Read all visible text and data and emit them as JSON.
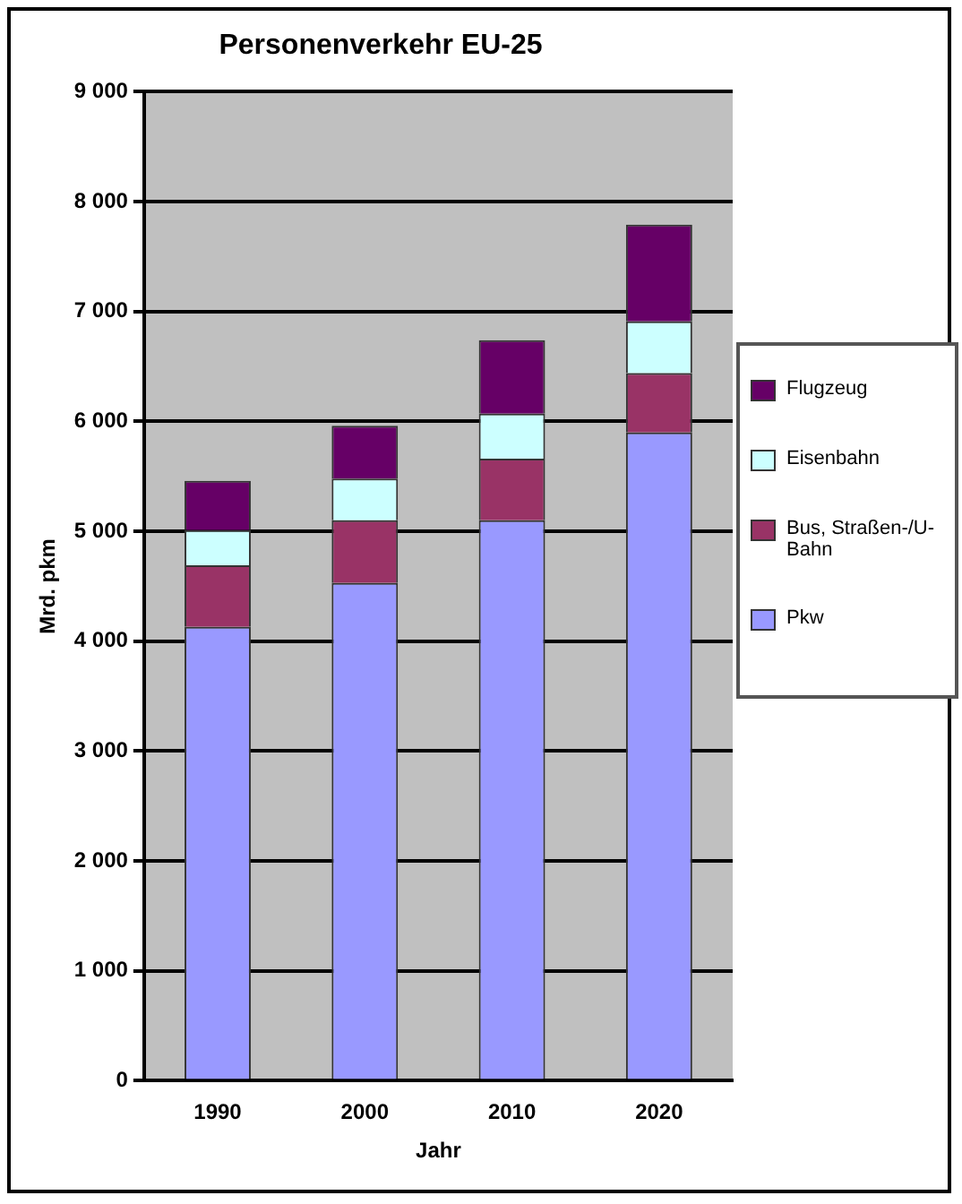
{
  "chart_data": {
    "type": "bar",
    "title": "Personenverkehr EU-25",
    "xlabel": "Jahr",
    "ylabel": "Mrd. pkm",
    "categories": [
      "1990",
      "2000",
      "2010",
      "2020"
    ],
    "stacked": true,
    "grid": "y",
    "legend": "right",
    "series": [
      {
        "name": "Pkw",
        "color": "#9999ff",
        "values": [
          4130,
          4530,
          5100,
          5900
        ]
      },
      {
        "name": "Bus, Straßen-/U-Bahn",
        "color": "#993366",
        "values": [
          560,
          570,
          560,
          540
        ]
      },
      {
        "name": "Eisenbahn",
        "color": "#ccffff",
        "values": [
          320,
          380,
          410,
          470
        ]
      },
      {
        "name": "Flugzeug",
        "color": "#660066",
        "values": [
          450,
          480,
          670,
          880
        ]
      }
    ],
    "ylim": [
      0,
      9000
    ],
    "yticks": [
      {
        "value": 0,
        "label": "0"
      },
      {
        "value": 1000,
        "label": "1 000"
      },
      {
        "value": 2000,
        "label": "2 000"
      },
      {
        "value": 3000,
        "label": "3 000"
      },
      {
        "value": 4000,
        "label": "4 000"
      },
      {
        "value": 5000,
        "label": "5 000"
      },
      {
        "value": 6000,
        "label": "6 000"
      },
      {
        "value": 7000,
        "label": "7 000"
      },
      {
        "value": 8000,
        "label": "8 000"
      },
      {
        "value": 9000,
        "label": "9 000"
      }
    ]
  }
}
